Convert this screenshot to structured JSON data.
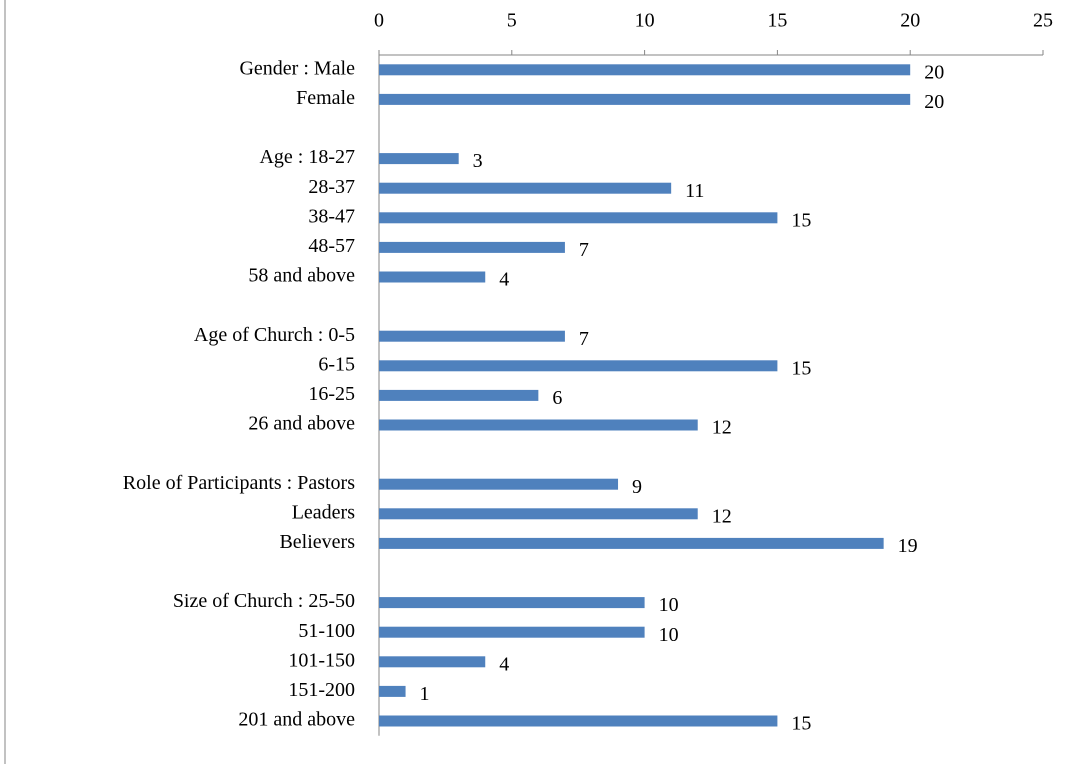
{
  "chart_data": {
    "type": "bar",
    "orientation": "horizontal",
    "categories": [
      "Gender : Male",
      "Female",
      null,
      "Age : 18-27",
      "28-37",
      "38-47",
      "48-57",
      "58 and above",
      null,
      "Age of Church : 0-5",
      "6-15",
      "16-25",
      "26 and above",
      null,
      "Role of Participants : Pastors",
      "Leaders",
      "Believers",
      null,
      "Size of Church : 25-50",
      "51-100",
      "101-150",
      "151-200",
      "201 and above"
    ],
    "values": [
      20,
      20,
      null,
      3,
      11,
      15,
      7,
      4,
      null,
      7,
      15,
      6,
      12,
      null,
      9,
      12,
      19,
      null,
      10,
      10,
      4,
      1,
      15
    ],
    "color": "#4f81bd",
    "xlim": [
      0,
      25
    ],
    "xticks": [
      0,
      5,
      10,
      15,
      20,
      25
    ],
    "x_axis_position": "top",
    "grid": false
  }
}
